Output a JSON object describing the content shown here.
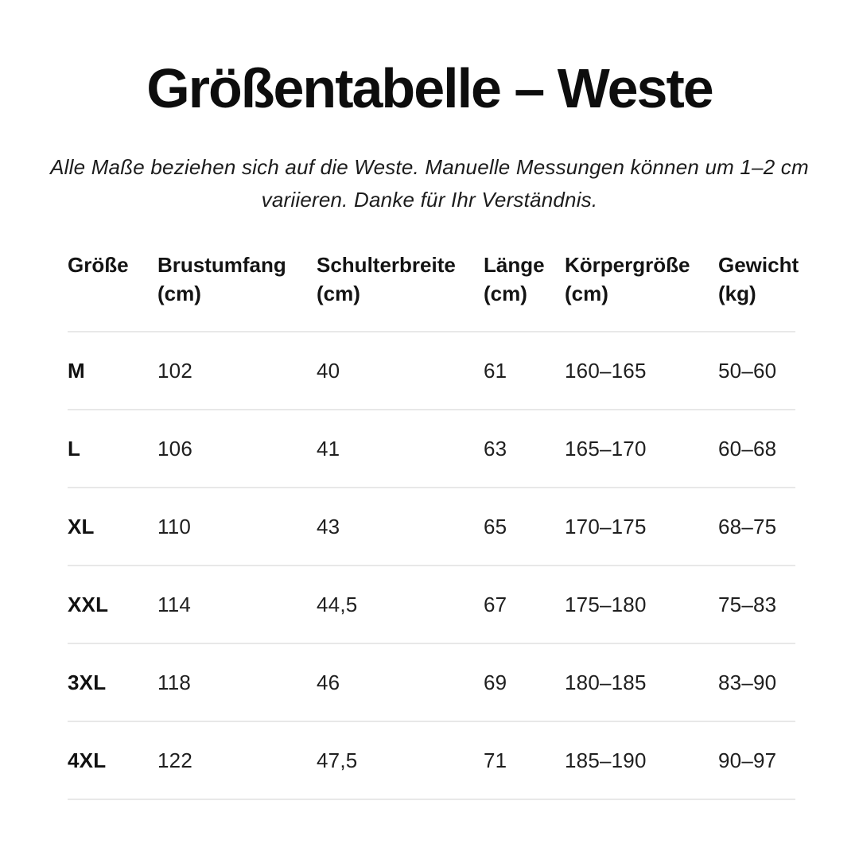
{
  "chart_data": {
    "type": "table",
    "title": "Größentabelle – Weste",
    "subtitle_lines": [
      "Alle Maße beziehen sich auf die Weste. Manuelle Messungen können um 1–2 cm",
      "variieren. Danke für Ihr Verständnis."
    ],
    "columns": [
      {
        "label": "Größe",
        "unit": ""
      },
      {
        "label": "Brustumfang",
        "unit": "(cm)"
      },
      {
        "label": "Schulterbreite",
        "unit": "(cm)"
      },
      {
        "label": "Länge",
        "unit": "(cm)"
      },
      {
        "label": "Körpergröße",
        "unit": "(cm)"
      },
      {
        "label": "Gewicht",
        "unit": "(kg)"
      }
    ],
    "rows": [
      [
        "M",
        "102",
        "40",
        "61",
        "160–165",
        "50–60"
      ],
      [
        "L",
        "106",
        "41",
        "63",
        "165–170",
        "60–68"
      ],
      [
        "XL",
        "110",
        "43",
        "65",
        "170–175",
        "68–75"
      ],
      [
        "XXL",
        "114",
        "44,5",
        "67",
        "175–180",
        "75–83"
      ],
      [
        "3XL",
        "118",
        "46",
        "69",
        "180–185",
        "83–90"
      ],
      [
        "4XL",
        "122",
        "47,5",
        "71",
        "185–190",
        "90–97"
      ]
    ],
    "layout": {
      "grid": "horizontal-dividers-only",
      "divider_color": "#e8e8e8",
      "background": "#ffffff",
      "text_color": "#111111"
    }
  }
}
